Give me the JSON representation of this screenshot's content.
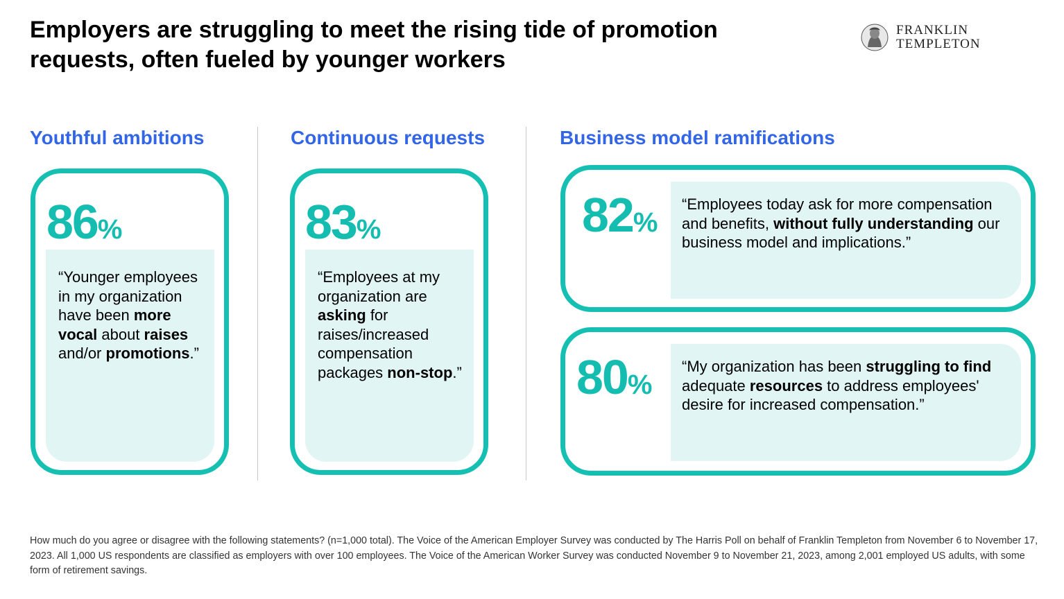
{
  "title": "Employers are struggling to meet the rising tide of promotion requests, often fueled by younger workers",
  "logo": {
    "line1": "FRANKLIN",
    "line2": "TEMPLETON",
    "icon": "portrait-icon"
  },
  "colors": {
    "accent_teal": "#15bfb1",
    "heading_blue": "#3366e6",
    "quote_bg": "#e1f5f5"
  },
  "sections": [
    {
      "heading": "Youthful ambitions",
      "stat": {
        "value": "86",
        "unit": "%"
      },
      "quote": [
        {
          "t": "“Younger employees in my organization have been "
        },
        {
          "t": "more vocal",
          "b": true
        },
        {
          "t": " about "
        },
        {
          "t": "raises",
          "b": true
        },
        {
          "t": " and/or "
        },
        {
          "t": "promotions",
          "b": true
        },
        {
          "t": ".”"
        }
      ]
    },
    {
      "heading": "Continuous requests",
      "stat": {
        "value": "83",
        "unit": "%"
      },
      "quote": [
        {
          "t": "“Employees at my organization are "
        },
        {
          "t": "asking",
          "b": true
        },
        {
          "t": " for raises/increased compensation packages "
        },
        {
          "t": "non-stop",
          "b": true
        },
        {
          "t": ".”"
        }
      ]
    },
    {
      "heading": "Business model ramifications",
      "cards": [
        {
          "stat": {
            "value": "82",
            "unit": "%"
          },
          "quote": [
            {
              "t": "“Employees today ask for more compensation and benefits, "
            },
            {
              "t": "without fully understanding",
              "b": true
            },
            {
              "t": " our business model and implications.”"
            }
          ]
        },
        {
          "stat": {
            "value": "80",
            "unit": "%"
          },
          "quote": [
            {
              "t": "“My organization has been "
            },
            {
              "t": "struggling to find",
              "b": true
            },
            {
              "t": " adequate "
            },
            {
              "t": "resources",
              "b": true
            },
            {
              "t": " to address employees' desire for increased compensation.”"
            }
          ]
        }
      ]
    }
  ],
  "footnote": "How much do you agree or disagree with the following statements? (n=1,000 total). The Voice of the American Employer Survey was conducted by The Harris Poll on behalf of Franklin Templeton from November 6 to November 17, 2023. All 1,000 US respondents are classified as employers with over 100 employees. The Voice of the American Worker Survey was conducted November 9 to November 21, 2023, among 2,001 employed US adults, with some form of retirement savings."
}
